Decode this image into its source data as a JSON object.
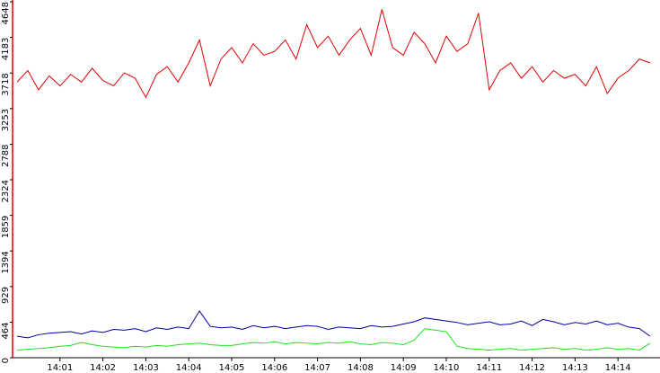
{
  "chart_data": {
    "type": "line",
    "categories": [
      null,
      null,
      null,
      null,
      "14:01",
      null,
      null,
      null,
      "14:02",
      null,
      null,
      null,
      "14:03",
      null,
      null,
      null,
      "14:04",
      null,
      null,
      null,
      "14:05",
      null,
      null,
      null,
      "14:06",
      null,
      null,
      null,
      "14:07",
      null,
      null,
      null,
      "14:08",
      null,
      null,
      null,
      "14:09",
      null,
      null,
      null,
      "14:10",
      null,
      null,
      null,
      "14:11",
      null,
      null,
      null,
      "14:12",
      null,
      null,
      null,
      "14:13",
      null,
      null,
      null,
      "14:14",
      null,
      null,
      null
    ],
    "series": [
      {
        "color": "#e00000",
        "values": [
          3600,
          3750,
          3500,
          3680,
          3550,
          3700,
          3600,
          3780,
          3620,
          3550,
          3720,
          3650,
          3400,
          3700,
          3800,
          3600,
          3850,
          4150,
          3550,
          3900,
          4050,
          3850,
          4100,
          3950,
          4000,
          4150,
          3900,
          4350,
          4050,
          4200,
          3950,
          4150,
          4300,
          3950,
          4550,
          4050,
          3950,
          4250,
          4100,
          3850,
          4200,
          4000,
          4100,
          4500,
          3500,
          3750,
          3850,
          3650,
          3800,
          3600,
          3750,
          3650,
          3700,
          3550,
          3800,
          3450,
          3650,
          3750,
          3900,
          3850
        ]
      },
      {
        "color": "#0000a0",
        "values": [
          280,
          260,
          300,
          320,
          330,
          340,
          310,
          350,
          330,
          370,
          360,
          380,
          340,
          390,
          370,
          400,
          380,
          610,
          410,
          390,
          400,
          370,
          420,
          390,
          410,
          380,
          400,
          420,
          410,
          370,
          400,
          390,
          380,
          420,
          400,
          410,
          440,
          470,
          520,
          500,
          480,
          460,
          430,
          450,
          470,
          430,
          440,
          480,
          420,
          500,
          470,
          430,
          460,
          440,
          480,
          430,
          450,
          400,
          380,
          280
        ]
      },
      {
        "color": "#20e020",
        "values": [
          100,
          110,
          120,
          130,
          150,
          160,
          200,
          170,
          150,
          140,
          130,
          150,
          140,
          160,
          150,
          170,
          180,
          190,
          170,
          160,
          160,
          180,
          200,
          190,
          210,
          180,
          200,
          190,
          180,
          200,
          190,
          210,
          180,
          170,
          200,
          190,
          170,
          230,
          380,
          360,
          340,
          150,
          120,
          110,
          100,
          110,
          120,
          100,
          110,
          120,
          130,
          110,
          120,
          100,
          110,
          130,
          110,
          120,
          100,
          190
        ]
      }
    ],
    "ylim": [
      0,
      4648
    ],
    "yticks": [
      0,
      464,
      929,
      1394,
      1859,
      2324,
      2788,
      3253,
      3718,
      4183,
      4648
    ]
  }
}
